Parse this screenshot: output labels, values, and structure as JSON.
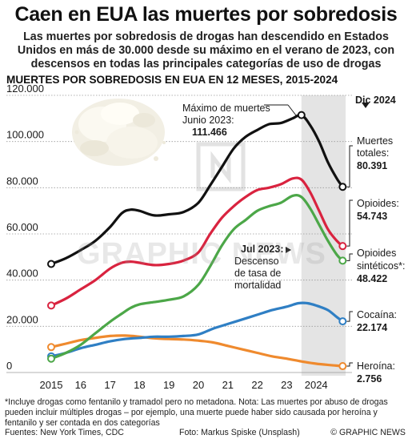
{
  "title": "Caen en EUA las muertes por sobredosis",
  "subtitle": "Las muertes por sobredosis de drogas han descendido  en Estados Unidos en más de 30.000 desde su máximo en el verano de 2023, con descensos en todas las principales categorías de uso de drogas",
  "chart_heading": "MUERTES POR SOBREDOSIS EN EUA EN 12 MESES, 2015-2024",
  "colors": {
    "total": "#111111",
    "opioids": "#d9233f",
    "synthetic": "#4ca748",
    "cocaine": "#2f7fc4",
    "heroin": "#ef8a2e",
    "highlight_band": "#e4e4e4"
  },
  "annotations": {
    "peak_line1": "Máximo de muertes",
    "peak_line2": "Junio 2023:",
    "peak_value": "111.466",
    "dec_label": "Dic 2024",
    "jul_label": "Jul 2023:",
    "jul_line1": "Descenso",
    "jul_line2": "de tasa de",
    "jul_line3": "mortalidad"
  },
  "endpoints": {
    "total": {
      "name_line1": "Muertes",
      "name_line2": "totales:",
      "value": "80.391"
    },
    "opioids": {
      "name_line1": "Opioides:",
      "value": "54.743"
    },
    "synthetic": {
      "name_line1": "Opioides",
      "name_line2": "sintéticos*:",
      "value": "48.422"
    },
    "cocaine": {
      "name_line1": "Cocaína:",
      "value": "22.174"
    },
    "heroin": {
      "name_line1": "Heroína:",
      "value": "2.756"
    }
  },
  "watermark": "GRAPHIC NEWS",
  "footnote": "*Incluye drogas como fentanilo y tramadol pero no metadona. Nota: Las muertes por abuso de drogas pueden incluir múltiples drogas – por ejemplo, una muerte puede haber sido causada por heroína y fentanilo y ser contada en dos categorías",
  "sources": "Fuentes: New York Times, CDC",
  "photo_credit": "Foto: Markus Spiske (Unsplash)",
  "brand": "© GRAPHIC NEWS",
  "chart_data": {
    "type": "line",
    "title": "MUERTES POR SOBREDOSIS EN EUA EN 12 MESES, 2015-2024",
    "xlabel": "",
    "ylabel": "",
    "ylim": [
      0,
      120000
    ],
    "xlim": [
      2015,
      2025
    ],
    "y_ticks": [
      0,
      20000,
      40000,
      60000,
      80000,
      100000,
      120000
    ],
    "y_tick_labels": [
      "0",
      "20.000",
      "40.000",
      "60.000",
      "80.000",
      "100.000",
      "120.000"
    ],
    "x_ticks": [
      2015,
      2016,
      2017,
      2018,
      2019,
      2020,
      2021,
      2022,
      2023,
      2024
    ],
    "x_tick_labels": [
      "2015",
      "16",
      "17",
      "18",
      "19",
      "20",
      "21",
      "22",
      "23",
      "2024"
    ],
    "grid": true,
    "highlight_range": [
      2023.5,
      2025
    ],
    "series": [
      {
        "key": "total",
        "name": "Muertes totales",
        "points": [
          [
            2015.0,
            47000
          ],
          [
            2015.5,
            49500
          ],
          [
            2016.0,
            53000
          ],
          [
            2016.5,
            57000
          ],
          [
            2017.0,
            63000
          ],
          [
            2017.4,
            69000
          ],
          [
            2017.7,
            70500
          ],
          [
            2018.0,
            70000
          ],
          [
            2018.5,
            68000
          ],
          [
            2019.0,
            68500
          ],
          [
            2019.5,
            69500
          ],
          [
            2020.0,
            73500
          ],
          [
            2020.4,
            81000
          ],
          [
            2020.8,
            89000
          ],
          [
            2021.2,
            97000
          ],
          [
            2021.6,
            102000
          ],
          [
            2022.0,
            105000
          ],
          [
            2022.4,
            107500
          ],
          [
            2022.8,
            108000
          ],
          [
            2023.2,
            110000
          ],
          [
            2023.5,
            111466
          ],
          [
            2023.8,
            107000
          ],
          [
            2024.1,
            100000
          ],
          [
            2024.4,
            91000
          ],
          [
            2024.7,
            84000
          ],
          [
            2024.9,
            80391
          ]
        ]
      },
      {
        "key": "opioids",
        "name": "Opioides",
        "points": [
          [
            2015.0,
            29000
          ],
          [
            2015.5,
            32000
          ],
          [
            2016.0,
            36000
          ],
          [
            2016.5,
            40000
          ],
          [
            2017.0,
            45000
          ],
          [
            2017.4,
            47500
          ],
          [
            2017.7,
            48000
          ],
          [
            2018.0,
            47500
          ],
          [
            2018.5,
            46500
          ],
          [
            2019.0,
            47000
          ],
          [
            2019.5,
            48500
          ],
          [
            2020.0,
            52000
          ],
          [
            2020.4,
            60000
          ],
          [
            2020.8,
            67000
          ],
          [
            2021.2,
            72000
          ],
          [
            2021.6,
            76000
          ],
          [
            2022.0,
            79000
          ],
          [
            2022.4,
            80000
          ],
          [
            2022.8,
            81500
          ],
          [
            2023.2,
            84000
          ],
          [
            2023.5,
            83500
          ],
          [
            2023.8,
            78000
          ],
          [
            2024.1,
            70000
          ],
          [
            2024.4,
            62000
          ],
          [
            2024.7,
            57000
          ],
          [
            2024.9,
            54743
          ]
        ]
      },
      {
        "key": "synthetic",
        "name": "Opioides sintéticos*",
        "points": [
          [
            2015.0,
            6000
          ],
          [
            2015.5,
            8500
          ],
          [
            2016.0,
            12000
          ],
          [
            2016.5,
            17000
          ],
          [
            2017.0,
            22000
          ],
          [
            2017.4,
            25500
          ],
          [
            2017.7,
            28000
          ],
          [
            2018.0,
            29500
          ],
          [
            2018.5,
            30500
          ],
          [
            2019.0,
            31500
          ],
          [
            2019.5,
            33000
          ],
          [
            2020.0,
            38000
          ],
          [
            2020.4,
            46000
          ],
          [
            2020.8,
            55000
          ],
          [
            2021.2,
            62000
          ],
          [
            2021.6,
            66000
          ],
          [
            2022.0,
            70000
          ],
          [
            2022.4,
            72000
          ],
          [
            2022.8,
            73500
          ],
          [
            2023.2,
            76500
          ],
          [
            2023.5,
            76000
          ],
          [
            2023.8,
            71000
          ],
          [
            2024.1,
            64000
          ],
          [
            2024.4,
            57000
          ],
          [
            2024.7,
            51000
          ],
          [
            2024.9,
            48422
          ]
        ]
      },
      {
        "key": "cocaine",
        "name": "Cocaína",
        "points": [
          [
            2015.0,
            7000
          ],
          [
            2015.5,
            8500
          ],
          [
            2016.0,
            10500
          ],
          [
            2016.5,
            12000
          ],
          [
            2017.0,
            13500
          ],
          [
            2017.5,
            14500
          ],
          [
            2018.0,
            15000
          ],
          [
            2018.5,
            15500
          ],
          [
            2019.0,
            15500
          ],
          [
            2019.5,
            15800
          ],
          [
            2020.0,
            16500
          ],
          [
            2020.5,
            19000
          ],
          [
            2021.0,
            21000
          ],
          [
            2021.5,
            23000
          ],
          [
            2022.0,
            25000
          ],
          [
            2022.5,
            27000
          ],
          [
            2023.0,
            28500
          ],
          [
            2023.4,
            30000
          ],
          [
            2023.7,
            30000
          ],
          [
            2024.0,
            29000
          ],
          [
            2024.4,
            27000
          ],
          [
            2024.7,
            24000
          ],
          [
            2024.9,
            22174
          ]
        ]
      },
      {
        "key": "heroin",
        "name": "Heroína",
        "points": [
          [
            2015.0,
            11000
          ],
          [
            2015.5,
            12500
          ],
          [
            2016.0,
            14000
          ],
          [
            2016.5,
            15000
          ],
          [
            2017.0,
            15800
          ],
          [
            2017.5,
            16000
          ],
          [
            2018.0,
            15500
          ],
          [
            2018.5,
            14800
          ],
          [
            2019.0,
            14500
          ],
          [
            2019.5,
            14300
          ],
          [
            2020.0,
            13800
          ],
          [
            2020.5,
            13000
          ],
          [
            2021.0,
            11500
          ],
          [
            2021.5,
            10000
          ],
          [
            2022.0,
            8500
          ],
          [
            2022.5,
            7000
          ],
          [
            2023.0,
            6000
          ],
          [
            2023.5,
            4800
          ],
          [
            2024.0,
            3800
          ],
          [
            2024.5,
            3200
          ],
          [
            2024.9,
            2756
          ]
        ]
      }
    ]
  }
}
